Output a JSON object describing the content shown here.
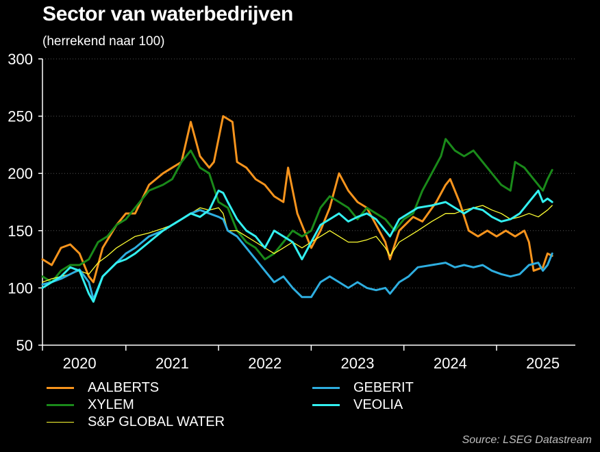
{
  "chart_data": {
    "type": "line",
    "title": "Sector van waterbedrijven",
    "subtitle": "(herrekend naar 100)",
    "source": "Source: LSEG Datastream",
    "ylim": [
      50,
      300
    ],
    "yticks": [
      50,
      100,
      150,
      200,
      250,
      300
    ],
    "xlim": [
      2019.6,
      2025.35
    ],
    "x_tick_labels": [
      {
        "label": "2020",
        "x": 2020.0
      },
      {
        "label": "2021",
        "x": 2021.0
      },
      {
        "label": "2022",
        "x": 2022.0
      },
      {
        "label": "2023",
        "x": 2023.0
      },
      {
        "label": "2024",
        "x": 2024.0
      },
      {
        "label": "2025",
        "x": 2025.0
      }
    ],
    "x_separators": [
      2019.6,
      2020.5,
      2021.5,
      2022.5,
      2023.5,
      2024.5
    ],
    "grid": true,
    "legend_position": "bottom",
    "series": [
      {
        "name": "AALBERTS",
        "color": "#f7941d",
        "width": 3,
        "points": [
          [
            2019.6,
            125
          ],
          [
            2019.7,
            120
          ],
          [
            2019.8,
            135
          ],
          [
            2019.9,
            138
          ],
          [
            2020.0,
            130
          ],
          [
            2020.1,
            110
          ],
          [
            2020.15,
            105
          ],
          [
            2020.25,
            135
          ],
          [
            2020.4,
            155
          ],
          [
            2020.5,
            165
          ],
          [
            2020.6,
            165
          ],
          [
            2020.75,
            190
          ],
          [
            2020.9,
            200
          ],
          [
            2021.0,
            205
          ],
          [
            2021.1,
            210
          ],
          [
            2021.2,
            245
          ],
          [
            2021.3,
            215
          ],
          [
            2021.4,
            205
          ],
          [
            2021.45,
            210
          ],
          [
            2021.55,
            250
          ],
          [
            2021.65,
            245
          ],
          [
            2021.7,
            210
          ],
          [
            2021.8,
            205
          ],
          [
            2021.9,
            195
          ],
          [
            2022.0,
            190
          ],
          [
            2022.1,
            180
          ],
          [
            2022.2,
            175
          ],
          [
            2022.25,
            205
          ],
          [
            2022.35,
            165
          ],
          [
            2022.5,
            135
          ],
          [
            2022.6,
            150
          ],
          [
            2022.7,
            170
          ],
          [
            2022.8,
            200
          ],
          [
            2022.9,
            185
          ],
          [
            2023.0,
            175
          ],
          [
            2023.1,
            170
          ],
          [
            2023.2,
            155
          ],
          [
            2023.3,
            140
          ],
          [
            2023.35,
            125
          ],
          [
            2023.45,
            150
          ],
          [
            2023.6,
            162
          ],
          [
            2023.7,
            158
          ],
          [
            2023.85,
            175
          ],
          [
            2023.95,
            190
          ],
          [
            2024.0,
            195
          ],
          [
            2024.1,
            175
          ],
          [
            2024.2,
            150
          ],
          [
            2024.3,
            145
          ],
          [
            2024.4,
            150
          ],
          [
            2024.5,
            145
          ],
          [
            2024.6,
            150
          ],
          [
            2024.7,
            145
          ],
          [
            2024.8,
            150
          ],
          [
            2024.85,
            140
          ],
          [
            2024.9,
            115
          ],
          [
            2025.0,
            118
          ],
          [
            2025.05,
            130
          ],
          [
            2025.1,
            128
          ]
        ]
      },
      {
        "name": "XYLEM",
        "color": "#1a8a1a",
        "width": 3,
        "points": [
          [
            2019.6,
            110
          ],
          [
            2019.7,
            105
          ],
          [
            2019.8,
            115
          ],
          [
            2019.9,
            120
          ],
          [
            2020.0,
            120
          ],
          [
            2020.1,
            125
          ],
          [
            2020.2,
            140
          ],
          [
            2020.3,
            145
          ],
          [
            2020.4,
            155
          ],
          [
            2020.5,
            160
          ],
          [
            2020.6,
            170
          ],
          [
            2020.75,
            185
          ],
          [
            2020.9,
            190
          ],
          [
            2021.0,
            195
          ],
          [
            2021.1,
            210
          ],
          [
            2021.2,
            220
          ],
          [
            2021.3,
            205
          ],
          [
            2021.4,
            200
          ],
          [
            2021.5,
            175
          ],
          [
            2021.6,
            170
          ],
          [
            2021.7,
            150
          ],
          [
            2021.8,
            140
          ],
          [
            2021.9,
            135
          ],
          [
            2022.0,
            125
          ],
          [
            2022.1,
            130
          ],
          [
            2022.2,
            140
          ],
          [
            2022.3,
            150
          ],
          [
            2022.4,
            145
          ],
          [
            2022.5,
            150
          ],
          [
            2022.6,
            170
          ],
          [
            2022.7,
            180
          ],
          [
            2022.8,
            175
          ],
          [
            2022.9,
            170
          ],
          [
            2023.0,
            160
          ],
          [
            2023.1,
            170
          ],
          [
            2023.2,
            165
          ],
          [
            2023.3,
            160
          ],
          [
            2023.4,
            150
          ],
          [
            2023.5,
            160
          ],
          [
            2023.6,
            165
          ],
          [
            2023.7,
            185
          ],
          [
            2023.8,
            200
          ],
          [
            2023.9,
            215
          ],
          [
            2023.95,
            230
          ],
          [
            2024.05,
            220
          ],
          [
            2024.15,
            215
          ],
          [
            2024.25,
            220
          ],
          [
            2024.35,
            210
          ],
          [
            2024.45,
            200
          ],
          [
            2024.55,
            190
          ],
          [
            2024.65,
            185
          ],
          [
            2024.7,
            210
          ],
          [
            2024.8,
            205
          ],
          [
            2024.9,
            195
          ],
          [
            2025.0,
            185
          ],
          [
            2025.05,
            195
          ],
          [
            2025.1,
            203
          ]
        ]
      },
      {
        "name": "S&P GLOBAL WATER",
        "color": "#ffff33",
        "width": 1.3,
        "points": [
          [
            2019.6,
            105
          ],
          [
            2019.7,
            108
          ],
          [
            2019.8,
            110
          ],
          [
            2019.9,
            112
          ],
          [
            2020.0,
            115
          ],
          [
            2020.1,
            112
          ],
          [
            2020.2,
            122
          ],
          [
            2020.3,
            128
          ],
          [
            2020.4,
            135
          ],
          [
            2020.5,
            140
          ],
          [
            2020.6,
            145
          ],
          [
            2020.75,
            148
          ],
          [
            2020.9,
            152
          ],
          [
            2021.0,
            155
          ],
          [
            2021.1,
            160
          ],
          [
            2021.2,
            165
          ],
          [
            2021.3,
            170
          ],
          [
            2021.4,
            168
          ],
          [
            2021.5,
            170
          ],
          [
            2021.55,
            165
          ],
          [
            2021.6,
            150
          ],
          [
            2021.7,
            150
          ],
          [
            2021.8,
            145
          ],
          [
            2021.9,
            140
          ],
          [
            2022.0,
            135
          ],
          [
            2022.1,
            130
          ],
          [
            2022.2,
            135
          ],
          [
            2022.3,
            140
          ],
          [
            2022.4,
            135
          ],
          [
            2022.5,
            140
          ],
          [
            2022.6,
            145
          ],
          [
            2022.7,
            150
          ],
          [
            2022.8,
            145
          ],
          [
            2022.9,
            140
          ],
          [
            2023.0,
            140
          ],
          [
            2023.1,
            142
          ],
          [
            2023.2,
            145
          ],
          [
            2023.3,
            135
          ],
          [
            2023.35,
            128
          ],
          [
            2023.45,
            140
          ],
          [
            2023.55,
            145
          ],
          [
            2023.65,
            150
          ],
          [
            2023.8,
            158
          ],
          [
            2023.95,
            165
          ],
          [
            2024.05,
            165
          ],
          [
            2024.15,
            168
          ],
          [
            2024.25,
            170
          ],
          [
            2024.35,
            172
          ],
          [
            2024.45,
            168
          ],
          [
            2024.55,
            165
          ],
          [
            2024.65,
            160
          ],
          [
            2024.75,
            162
          ],
          [
            2024.85,
            165
          ],
          [
            2024.95,
            162
          ],
          [
            2025.05,
            168
          ],
          [
            2025.1,
            172
          ]
        ]
      },
      {
        "name": "GEBERIT",
        "color": "#2eaee0",
        "width": 3,
        "points": [
          [
            2019.6,
            103
          ],
          [
            2019.7,
            105
          ],
          [
            2019.8,
            108
          ],
          [
            2019.9,
            112
          ],
          [
            2020.0,
            116
          ],
          [
            2020.1,
            105
          ],
          [
            2020.15,
            90
          ],
          [
            2020.25,
            110
          ],
          [
            2020.4,
            122
          ],
          [
            2020.5,
            130
          ],
          [
            2020.6,
            135
          ],
          [
            2020.75,
            145
          ],
          [
            2020.9,
            150
          ],
          [
            2021.0,
            155
          ],
          [
            2021.1,
            160
          ],
          [
            2021.2,
            165
          ],
          [
            2021.3,
            168
          ],
          [
            2021.4,
            165
          ],
          [
            2021.5,
            162
          ],
          [
            2021.55,
            160
          ],
          [
            2021.6,
            150
          ],
          [
            2021.7,
            145
          ],
          [
            2021.8,
            135
          ],
          [
            2021.9,
            125
          ],
          [
            2022.0,
            115
          ],
          [
            2022.1,
            105
          ],
          [
            2022.2,
            110
          ],
          [
            2022.3,
            100
          ],
          [
            2022.4,
            92
          ],
          [
            2022.5,
            92
          ],
          [
            2022.6,
            105
          ],
          [
            2022.7,
            110
          ],
          [
            2022.8,
            105
          ],
          [
            2022.9,
            100
          ],
          [
            2023.0,
            105
          ],
          [
            2023.1,
            100
          ],
          [
            2023.2,
            98
          ],
          [
            2023.3,
            100
          ],
          [
            2023.35,
            95
          ],
          [
            2023.45,
            105
          ],
          [
            2023.55,
            110
          ],
          [
            2023.65,
            118
          ],
          [
            2023.8,
            120
          ],
          [
            2023.95,
            122
          ],
          [
            2024.05,
            118
          ],
          [
            2024.15,
            120
          ],
          [
            2024.25,
            118
          ],
          [
            2024.35,
            120
          ],
          [
            2024.45,
            115
          ],
          [
            2024.55,
            112
          ],
          [
            2024.65,
            110
          ],
          [
            2024.75,
            112
          ],
          [
            2024.85,
            120
          ],
          [
            2024.95,
            122
          ],
          [
            2025.0,
            115
          ],
          [
            2025.05,
            120
          ],
          [
            2025.1,
            130
          ]
        ]
      },
      {
        "name": "VEOLIA",
        "color": "#33f0f0",
        "width": 3,
        "points": [
          [
            2019.6,
            100
          ],
          [
            2019.7,
            105
          ],
          [
            2019.8,
            110
          ],
          [
            2019.9,
            118
          ],
          [
            2020.0,
            115
          ],
          [
            2020.1,
            95
          ],
          [
            2020.15,
            88
          ],
          [
            2020.25,
            110
          ],
          [
            2020.4,
            122
          ],
          [
            2020.5,
            125
          ],
          [
            2020.6,
            130
          ],
          [
            2020.75,
            140
          ],
          [
            2020.9,
            150
          ],
          [
            2021.0,
            155
          ],
          [
            2021.1,
            160
          ],
          [
            2021.2,
            165
          ],
          [
            2021.3,
            162
          ],
          [
            2021.4,
            168
          ],
          [
            2021.5,
            185
          ],
          [
            2021.55,
            183
          ],
          [
            2021.6,
            175
          ],
          [
            2021.7,
            160
          ],
          [
            2021.8,
            150
          ],
          [
            2021.9,
            145
          ],
          [
            2022.0,
            135
          ],
          [
            2022.1,
            150
          ],
          [
            2022.2,
            145
          ],
          [
            2022.3,
            140
          ],
          [
            2022.4,
            125
          ],
          [
            2022.5,
            140
          ],
          [
            2022.6,
            155
          ],
          [
            2022.7,
            160
          ],
          [
            2022.8,
            165
          ],
          [
            2022.9,
            158
          ],
          [
            2023.0,
            162
          ],
          [
            2023.1,
            165
          ],
          [
            2023.2,
            160
          ],
          [
            2023.3,
            150
          ],
          [
            2023.35,
            145
          ],
          [
            2023.45,
            160
          ],
          [
            2023.55,
            165
          ],
          [
            2023.65,
            170
          ],
          [
            2023.8,
            172
          ],
          [
            2023.95,
            175
          ],
          [
            2024.05,
            170
          ],
          [
            2024.15,
            165
          ],
          [
            2024.25,
            170
          ],
          [
            2024.35,
            168
          ],
          [
            2024.45,
            162
          ],
          [
            2024.55,
            158
          ],
          [
            2024.65,
            160
          ],
          [
            2024.75,
            165
          ],
          [
            2024.85,
            175
          ],
          [
            2024.95,
            185
          ],
          [
            2025.0,
            175
          ],
          [
            2025.05,
            178
          ],
          [
            2025.1,
            175
          ]
        ]
      }
    ],
    "legend": [
      {
        "label": "AALBERTS",
        "color": "#f7941d",
        "width": 3
      },
      {
        "label": "GEBERIT",
        "color": "#2eaee0",
        "width": 3
      },
      {
        "label": "XYLEM",
        "color": "#1a8a1a",
        "width": 3
      },
      {
        "label": "VEOLIA",
        "color": "#33f0f0",
        "width": 3
      },
      {
        "label": "S&P GLOBAL WATER",
        "color": "#ffff33",
        "width": 1.3
      }
    ]
  }
}
